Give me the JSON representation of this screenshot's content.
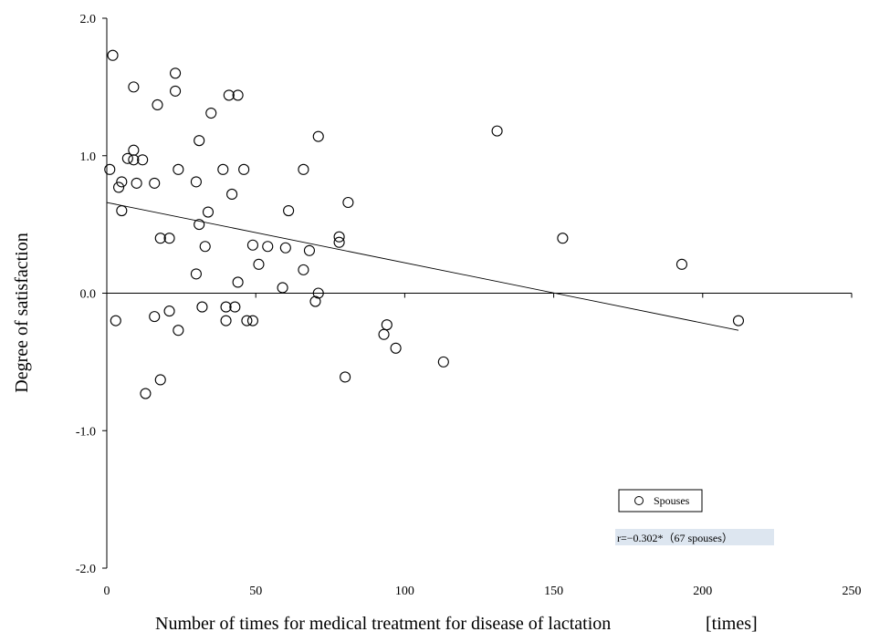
{
  "chart_data": {
    "type": "scatter",
    "title": "",
    "xlabel": "Number of times for medical treatment for disease of lactation",
    "xunit": "[times]",
    "ylabel": "Degree of satisfaction",
    "xlim": [
      0,
      250
    ],
    "ylim": [
      -2.0,
      2.0
    ],
    "xticks": [
      "0",
      "50",
      "100",
      "150",
      "200",
      "250"
    ],
    "yticks": [
      "2.0",
      "1.0",
      "0.0",
      "-1.0",
      "-2.0"
    ],
    "grid": false,
    "legend": {
      "position": "bottom-right",
      "entries": [
        "Spouses"
      ]
    },
    "annotation": "r=−0.302*（67 spouses）",
    "series": [
      {
        "name": "Spouses",
        "marker": "open-circle",
        "points": [
          [
            2,
            1.73
          ],
          [
            23,
            1.6
          ],
          [
            9,
            1.5
          ],
          [
            23,
            1.47
          ],
          [
            41,
            1.44
          ],
          [
            44,
            1.44
          ],
          [
            17,
            1.37
          ],
          [
            35,
            1.31
          ],
          [
            131,
            1.18
          ],
          [
            71,
            1.14
          ],
          [
            31,
            1.11
          ],
          [
            9,
            1.04
          ],
          [
            7,
            0.98
          ],
          [
            9,
            0.97
          ],
          [
            12,
            0.97
          ],
          [
            1,
            0.9
          ],
          [
            24,
            0.9
          ],
          [
            39,
            0.9
          ],
          [
            46,
            0.9
          ],
          [
            66,
            0.9
          ],
          [
            5,
            0.81
          ],
          [
            10,
            0.8
          ],
          [
            16,
            0.8
          ],
          [
            30,
            0.81
          ],
          [
            4,
            0.77
          ],
          [
            42,
            0.72
          ],
          [
            81,
            0.66
          ],
          [
            5,
            0.6
          ],
          [
            34,
            0.59
          ],
          [
            61,
            0.6
          ],
          [
            31,
            0.5
          ],
          [
            78,
            0.41
          ],
          [
            18,
            0.4
          ],
          [
            21,
            0.4
          ],
          [
            153,
            0.4
          ],
          [
            78,
            0.37
          ],
          [
            33,
            0.34
          ],
          [
            49,
            0.35
          ],
          [
            54,
            0.34
          ],
          [
            60,
            0.33
          ],
          [
            68,
            0.31
          ],
          [
            193,
            0.21
          ],
          [
            51,
            0.21
          ],
          [
            66,
            0.17
          ],
          [
            30,
            0.14
          ],
          [
            44,
            0.08
          ],
          [
            32,
            -0.1
          ],
          [
            59,
            0.04
          ],
          [
            71,
            0.0
          ],
          [
            70,
            -0.06
          ],
          [
            21,
            -0.13
          ],
          [
            40,
            -0.1
          ],
          [
            43,
            -0.1
          ],
          [
            16,
            -0.17
          ],
          [
            3,
            -0.2
          ],
          [
            40,
            -0.2
          ],
          [
            47,
            -0.2
          ],
          [
            49,
            -0.2
          ],
          [
            212,
            -0.2
          ],
          [
            94,
            -0.23
          ],
          [
            24,
            -0.27
          ],
          [
            93,
            -0.3
          ],
          [
            97,
            -0.4
          ],
          [
            113,
            -0.5
          ],
          [
            80,
            -0.61
          ],
          [
            18,
            -0.63
          ],
          [
            13,
            -0.73
          ]
        ]
      }
    ],
    "trendline": {
      "x": [
        0,
        212
      ],
      "y": [
        0.66,
        -0.27
      ]
    }
  }
}
